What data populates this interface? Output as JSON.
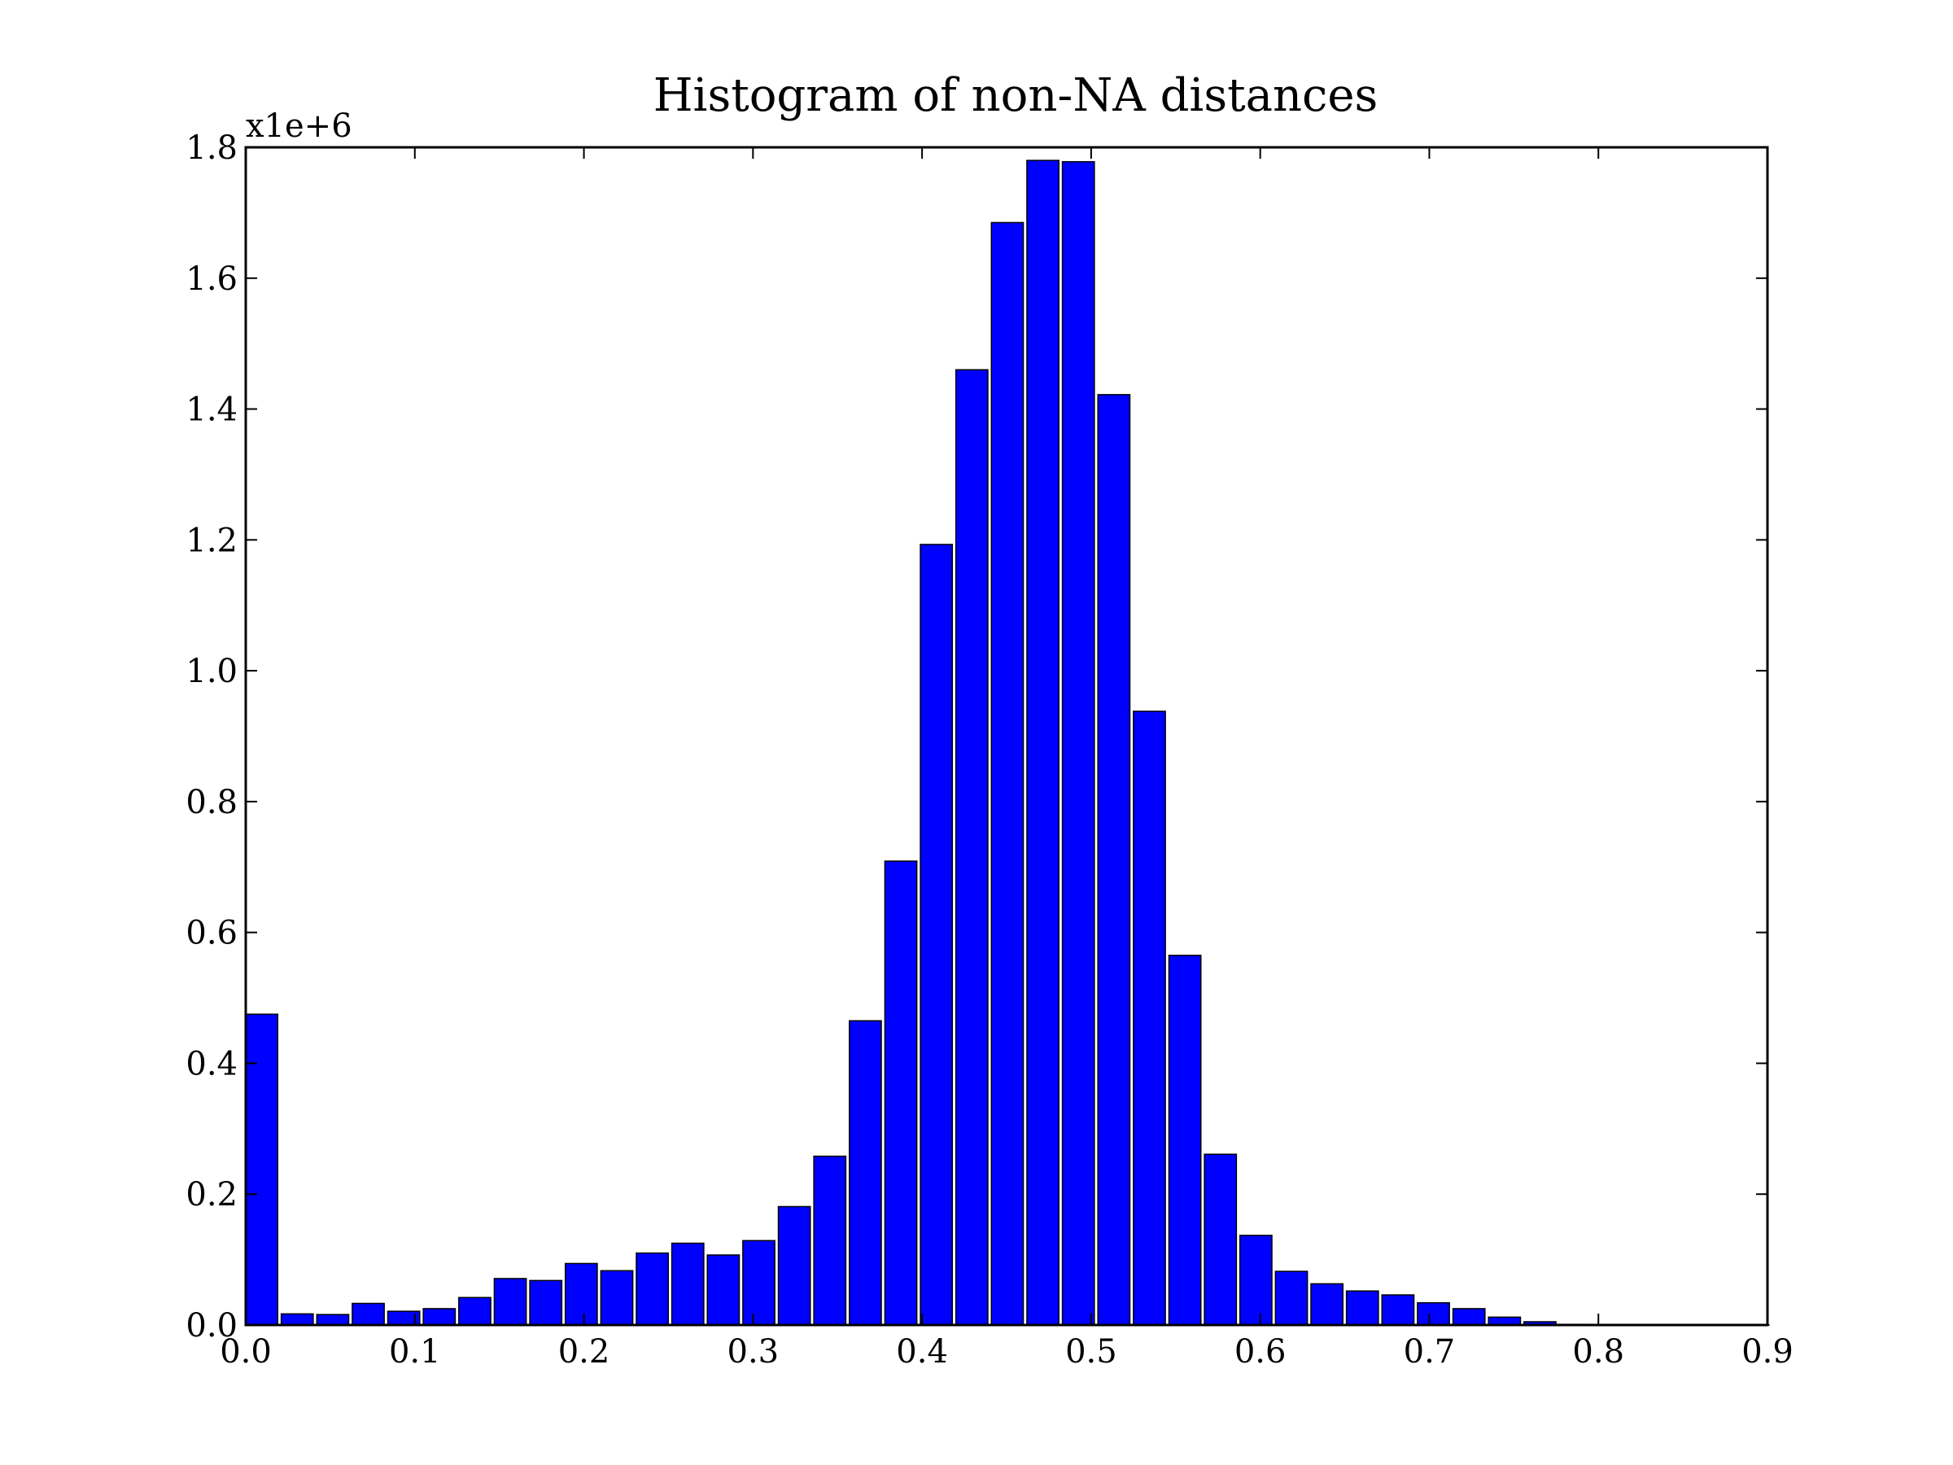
{
  "chart_data": {
    "type": "bar",
    "title": "Histogram of non-NA distances",
    "xlabel": "",
    "ylabel": "",
    "y_offset_label": "x1e+6",
    "xlim": [
      0.0,
      0.9
    ],
    "ylim": [
      0.0,
      1.8
    ],
    "x_ticks": [
      "0.0",
      "0.1",
      "0.2",
      "0.3",
      "0.4",
      "0.5",
      "0.6",
      "0.7",
      "0.8",
      "0.9"
    ],
    "y_ticks": [
      "0.0",
      "0.2",
      "0.4",
      "0.6",
      "0.8",
      "1.0",
      "1.2",
      "1.4",
      "1.6",
      "1.8"
    ],
    "grid": false,
    "bar_color": "#0000ff",
    "bin_width": 0.021,
    "bin_edges_start": [
      0.0,
      0.021,
      0.042,
      0.063,
      0.084,
      0.105,
      0.126,
      0.147,
      0.168,
      0.189,
      0.21,
      0.231,
      0.252,
      0.273,
      0.294,
      0.315,
      0.336,
      0.357,
      0.378,
      0.399,
      0.42,
      0.441,
      0.462,
      0.483,
      0.504,
      0.525,
      0.546,
      0.567,
      0.588,
      0.609,
      0.63,
      0.651,
      0.672,
      0.693,
      0.714,
      0.735,
      0.756,
      0.777,
      0.798,
      0.819,
      0.84,
      0.861,
      0.882
    ],
    "values": [
      0.475,
      0.017,
      0.016,
      0.033,
      0.021,
      0.025,
      0.042,
      0.071,
      0.068,
      0.094,
      0.083,
      0.11,
      0.125,
      0.107,
      0.129,
      0.181,
      0.258,
      0.465,
      0.709,
      1.193,
      1.46,
      1.685,
      1.78,
      1.778,
      1.422,
      0.938,
      0.565,
      0.261,
      0.137,
      0.082,
      0.063,
      0.052,
      0.046,
      0.034,
      0.025,
      0.012,
      0.005,
      0.001,
      0.0005,
      0.0003,
      0.0002,
      0.0001,
      0.0001
    ]
  }
}
